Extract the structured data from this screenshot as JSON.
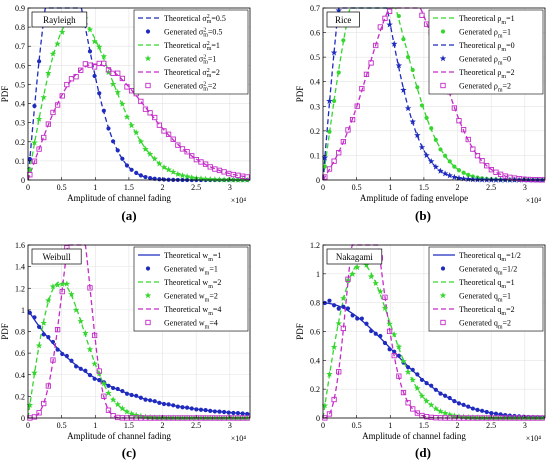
{
  "panels_caption": [
    "(a)",
    "(b)",
    "(c)",
    "(d)"
  ],
  "chart_data": [
    {
      "type": "line",
      "panel_tag": "Rayleigh",
      "caption": "(a)",
      "xlabel": "Amplitude of channel fading",
      "ylabel": "PDF",
      "x_exponent": "×10⁴",
      "xlim": [
        0,
        3.3
      ],
      "ylim": [
        0,
        0.9
      ],
      "xticks": [
        0,
        0.5,
        1,
        1.5,
        2,
        2.5,
        3
      ],
      "xtick_labels": [
        "0",
        "0.5",
        "1",
        "1.5",
        "2",
        "2.5",
        "3"
      ],
      "yticks": [
        0,
        0.1,
        0.2,
        0.3,
        0.4,
        0.5,
        0.6,
        0.7,
        0.8,
        0.9
      ],
      "ytick_labels": [
        "0",
        "0.1",
        "0.2",
        "0.3",
        "0.4",
        "0.5",
        "0.6",
        "0.7",
        "0.8",
        "0.9"
      ],
      "grid": true,
      "legend_position": "top-right",
      "series": [
        {
          "name": "Theoretical σ²m=0.5",
          "color": "#1f2bbf",
          "style": "dashed",
          "kind": "rayleigh",
          "p": 0.5
        },
        {
          "name": "Generated σ²m=0.5",
          "color": "#1f2bbf",
          "marker": "dot",
          "kind": "rayleigh",
          "p": 0.5
        },
        {
          "name": "Theoretical σ²m=1",
          "color": "#35d62e",
          "style": "dashed",
          "kind": "rayleigh",
          "p": 1
        },
        {
          "name": "Generated σ²m=1",
          "color": "#35d62e",
          "marker": "star",
          "kind": "rayleigh",
          "p": 1
        },
        {
          "name": "Theoretical σ²m=2",
          "color": "#c42bc8",
          "style": "dashed",
          "kind": "rayleigh",
          "p": 2
        },
        {
          "name": "Generated σ²m=2",
          "color": "#c42bc8",
          "marker": "square",
          "kind": "rayleigh",
          "p": 2
        }
      ],
      "legend_labels": [
        {
          "main": "Theoretical σ",
          "sup": "2",
          "sub": "m",
          "tail": "=0.5"
        },
        {
          "main": "Generated σ",
          "sup": "2",
          "sub": "m",
          "tail": "=0.5"
        },
        {
          "main": "Theoretical σ",
          "sup": "2",
          "sub": "m",
          "tail": "=1"
        },
        {
          "main": "Generated σ",
          "sup": "2",
          "sub": "m",
          "tail": "=1"
        },
        {
          "main": "Theoretical σ",
          "sup": "2",
          "sub": "m",
          "tail": "=2"
        },
        {
          "main": "Generated σ",
          "sup": "2",
          "sub": "m",
          "tail": "=2"
        }
      ]
    },
    {
      "type": "line",
      "panel_tag": "Rice",
      "caption": "(b)",
      "xlabel": "Amplitude of fading envelope",
      "ylabel": "PDF",
      "x_exponent": "×10⁴",
      "xlim": [
        0,
        3.3
      ],
      "ylim": [
        0,
        0.7
      ],
      "xticks": [
        0,
        0.5,
        1,
        1.5,
        2,
        2.5,
        3
      ],
      "xtick_labels": [
        "0",
        "0.5",
        "1",
        "1.5",
        "2",
        "2.5",
        "3"
      ],
      "yticks": [
        0,
        0.1,
        0.2,
        0.3,
        0.4,
        0.5,
        0.6,
        0.7
      ],
      "ytick_labels": [
        "0",
        "0.1",
        "0.2",
        "0.3",
        "0.4",
        "0.5",
        "0.6",
        "0.7"
      ],
      "grid": true,
      "legend_position": "top-right",
      "series": [
        {
          "name": "Theoretical ρm=1",
          "color": "#35d62e",
          "style": "dashed",
          "kind": "rice",
          "p": 1
        },
        {
          "name": "Generated ρm=1",
          "color": "#35d62e",
          "marker": "dot",
          "kind": "rice",
          "p": 1
        },
        {
          "name": "Theoretical ρm=0",
          "color": "#1f2bbf",
          "style": "dashed",
          "kind": "rice",
          "p": 0
        },
        {
          "name": "Generated ρm=0",
          "color": "#1f2bbf",
          "marker": "star",
          "kind": "rice",
          "p": 0
        },
        {
          "name": "Theoretical ρm=2",
          "color": "#c42bc8",
          "style": "dashed",
          "kind": "rice",
          "p": 2
        },
        {
          "name": "Generated ρm=2",
          "color": "#c42bc8",
          "marker": "square",
          "kind": "rice",
          "p": 2
        }
      ],
      "legend_labels": [
        {
          "main": "Theoretical ρ",
          "sup": "",
          "sub": "m",
          "tail": "=1"
        },
        {
          "main": "Generated ρ",
          "sup": "",
          "sub": "m",
          "tail": "=1"
        },
        {
          "main": "Theoretical ρ",
          "sup": "",
          "sub": "m",
          "tail": "=0"
        },
        {
          "main": "Generated ρ",
          "sup": "",
          "sub": "m",
          "tail": "=0"
        },
        {
          "main": "Theoretical ρ",
          "sup": "",
          "sub": "m",
          "tail": "=2"
        },
        {
          "main": "Generated ρ",
          "sup": "",
          "sub": "m",
          "tail": "=2"
        }
      ]
    },
    {
      "type": "line",
      "panel_tag": "Weibull",
      "caption": "(c)",
      "xlabel": "Amplitude of channel fading",
      "ylabel": "PDF",
      "x_exponent": "×10⁴",
      "xlim": [
        0,
        3.3
      ],
      "ylim": [
        0,
        1.6
      ],
      "xticks": [
        0,
        0.5,
        1,
        1.5,
        2,
        2.5,
        3
      ],
      "xtick_labels": [
        "0",
        "0.5",
        "1",
        "1.5",
        "2",
        "2.5",
        "3"
      ],
      "yticks": [
        0,
        0.2,
        0.4,
        0.6,
        0.8,
        1,
        1.2,
        1.4,
        1.6
      ],
      "ytick_labels": [
        "0",
        "0.2",
        "0.4",
        "0.6",
        "0.8",
        "1",
        "1.2",
        "1.4",
        "1.6"
      ],
      "grid": true,
      "legend_position": "top-right",
      "series": [
        {
          "name": "Theoretical wm=1",
          "color": "#1f2bbf",
          "style": "solid",
          "kind": "weibull",
          "p": 1
        },
        {
          "name": "Generated wm=1",
          "color": "#1f2bbf",
          "marker": "dot",
          "kind": "weibull",
          "p": 1
        },
        {
          "name": "Theoretical wm=2",
          "color": "#35d62e",
          "style": "dashed",
          "kind": "weibull",
          "p": 2
        },
        {
          "name": "Generated wm=2",
          "color": "#35d62e",
          "marker": "star",
          "kind": "weibull",
          "p": 2
        },
        {
          "name": "Theoretical wm=4",
          "color": "#c42bc8",
          "style": "dashed",
          "kind": "weibull",
          "p": 4
        },
        {
          "name": "Generated wm=4",
          "color": "#c42bc8",
          "marker": "square",
          "kind": "weibull",
          "p": 4
        }
      ],
      "legend_labels": [
        {
          "main": "Theoretical w",
          "sup": "",
          "sub": "m",
          "tail": "=1"
        },
        {
          "main": "Generated w",
          "sup": "",
          "sub": "m",
          "tail": "=1"
        },
        {
          "main": "Theoretical w",
          "sup": "",
          "sub": "m",
          "tail": "=2"
        },
        {
          "main": "Generated w",
          "sup": "",
          "sub": "m",
          "tail": "=2"
        },
        {
          "main": "Theoretical w",
          "sup": "",
          "sub": "m",
          "tail": "=4"
        },
        {
          "main": "Generated w",
          "sup": "",
          "sub": "m",
          "tail": "=4"
        }
      ]
    },
    {
      "type": "line",
      "panel_tag": "Nakagami",
      "caption": "(d)",
      "xlabel": "Amplitude of channel fading",
      "ylabel": "PDF",
      "x_exponent": "×10⁴",
      "xlim": [
        0,
        3.3
      ],
      "ylim": [
        0,
        1.2
      ],
      "xticks": [
        0,
        0.5,
        1,
        1.5,
        2,
        2.5,
        3
      ],
      "xtick_labels": [
        "0",
        "0.5",
        "1",
        "1.5",
        "2",
        "2.5",
        "3"
      ],
      "yticks": [
        0,
        0.2,
        0.4,
        0.6,
        0.8,
        1,
        1.2
      ],
      "ytick_labels": [
        "0",
        "0.2",
        "0.4",
        "0.6",
        "0.8",
        "1",
        "1.2"
      ],
      "grid": true,
      "legend_position": "top-right",
      "series": [
        {
          "name": "Theoretical qm=1/2",
          "color": "#1f2bbf",
          "style": "solid",
          "kind": "nakagami",
          "p": 0.5
        },
        {
          "name": "Generated qm=1/2",
          "color": "#1f2bbf",
          "marker": "dot",
          "kind": "nakagami",
          "p": 0.5
        },
        {
          "name": "Theoretical qm=1",
          "color": "#35d62e",
          "style": "dashed",
          "kind": "nakagami",
          "p": 1
        },
        {
          "name": "Generated qm=1",
          "color": "#35d62e",
          "marker": "star",
          "kind": "nakagami",
          "p": 1
        },
        {
          "name": "Theoretical qm=2",
          "color": "#c42bc8",
          "style": "dashed",
          "kind": "nakagami",
          "p": 2
        },
        {
          "name": "Generated qm=2",
          "color": "#c42bc8",
          "marker": "square",
          "kind": "nakagami",
          "p": 2
        }
      ],
      "legend_labels": [
        {
          "main": "Theoretical q",
          "sup": "",
          "sub": "m",
          "tail": "=1/2"
        },
        {
          "main": "Generated q",
          "sup": "",
          "sub": "m",
          "tail": "=1/2"
        },
        {
          "main": "Theoretical q",
          "sup": "",
          "sub": "m",
          "tail": "=1"
        },
        {
          "main": "Generated q",
          "sup": "",
          "sub": "m",
          "tail": "=1"
        },
        {
          "main": "Theoretical q",
          "sup": "",
          "sub": "m",
          "tail": "=2"
        },
        {
          "main": "Generated q",
          "sup": "",
          "sub": "m",
          "tail": "=2"
        }
      ]
    }
  ]
}
